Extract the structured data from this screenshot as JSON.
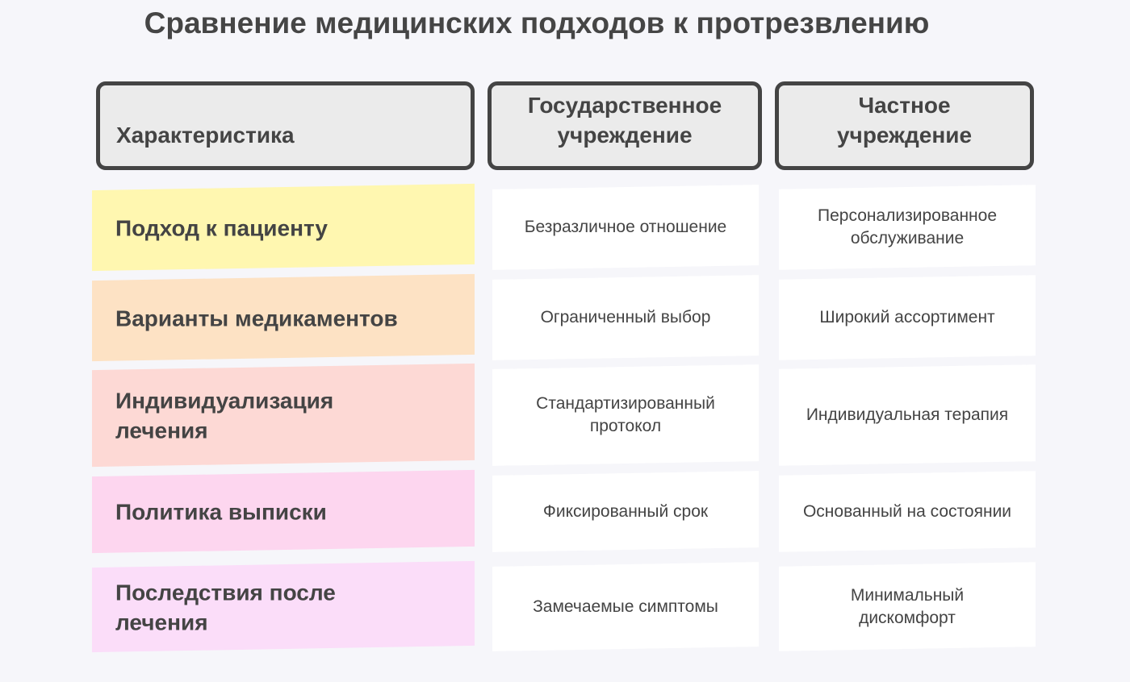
{
  "title": "Сравнение медицинских подходов к протрезвлению",
  "headers": [
    "Характеристика",
    "Государственное учреждение",
    "Частное учреждение"
  ],
  "rows": [
    {
      "label": "Подход к пациенту",
      "public": "Безразличное отношение",
      "private": "Персонализированное обслуживание",
      "color": "#fff7b0"
    },
    {
      "label": "Варианты медикаментов",
      "public": "Ограниченный выбор",
      "private": "Широкий ассортимент",
      "color": "#fde2c4"
    },
    {
      "label": "Индивидуализация лечения",
      "public": "Стандартизированный протокол",
      "private": "Индивидуальная терапия",
      "color": "#fdd9d5"
    },
    {
      "label": "Политика выписки",
      "public": "Фиксированный срок",
      "private": "Основанный на состоянии",
      "color": "#fdd6ef"
    },
    {
      "label": "Последствия после лечения",
      "public": "Замечаемые симптомы",
      "private": "Минимальный дискомфорт",
      "color": "#fbddf9"
    }
  ]
}
